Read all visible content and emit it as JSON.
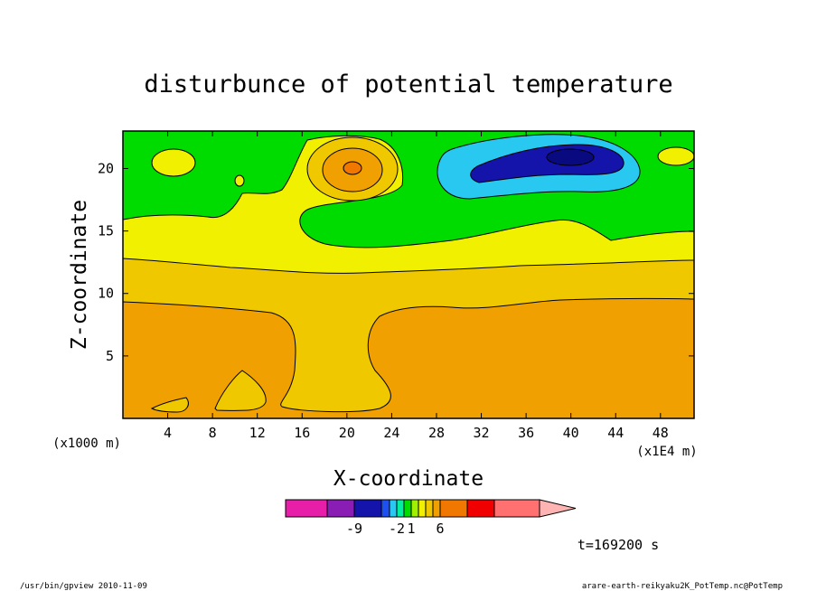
{
  "chart_data": {
    "type": "heatmap",
    "title": "disturbunce of potential temperature",
    "xlabel": "X-coordinate",
    "ylabel": "Z-coordinate",
    "x_unit_left": "(x1000 m)",
    "x_unit_right": "(x1E4 m)",
    "xlim": [
      0,
      51
    ],
    "ylim": [
      0,
      23
    ],
    "xticks": [
      4,
      8,
      12,
      16,
      20,
      24,
      28,
      32,
      36,
      40,
      44,
      48
    ],
    "yticks": [
      5,
      10,
      15,
      20
    ],
    "time_label": "t=169200 s",
    "colorbar": {
      "colors": [
        "#e61ea8",
        "#8a1eb4",
        "#1414aa",
        "#1e50f0",
        "#28c8f0",
        "#00f0a0",
        "#00dc00",
        "#a0f000",
        "#f0f000",
        "#f0c800",
        "#f0a000",
        "#f07800",
        "#f00000",
        "#ff7070",
        "#ffb4b4"
      ],
      "tick_labels": [
        "-9",
        "-2",
        "1",
        "6"
      ]
    },
    "regions": [
      {
        "name": "background",
        "color": "#00dc00"
      },
      {
        "name": "level-yellow",
        "color": "#f0f000"
      },
      {
        "name": "level-gold",
        "color": "#f0c800"
      },
      {
        "name": "level-orange",
        "color": "#f0a000"
      },
      {
        "name": "warm-core",
        "color": "#f07800"
      },
      {
        "name": "cold-outer",
        "color": "#28c8f0"
      },
      {
        "name": "cold-mid",
        "color": "#1414aa"
      },
      {
        "name": "cold-core",
        "color": "#0a0a80"
      }
    ]
  },
  "footer": {
    "left": "/usr/bin/gpview  2010-11-09",
    "right": "arare-earth-reikyaku2K_PotTemp.nc@PotTemp"
  }
}
